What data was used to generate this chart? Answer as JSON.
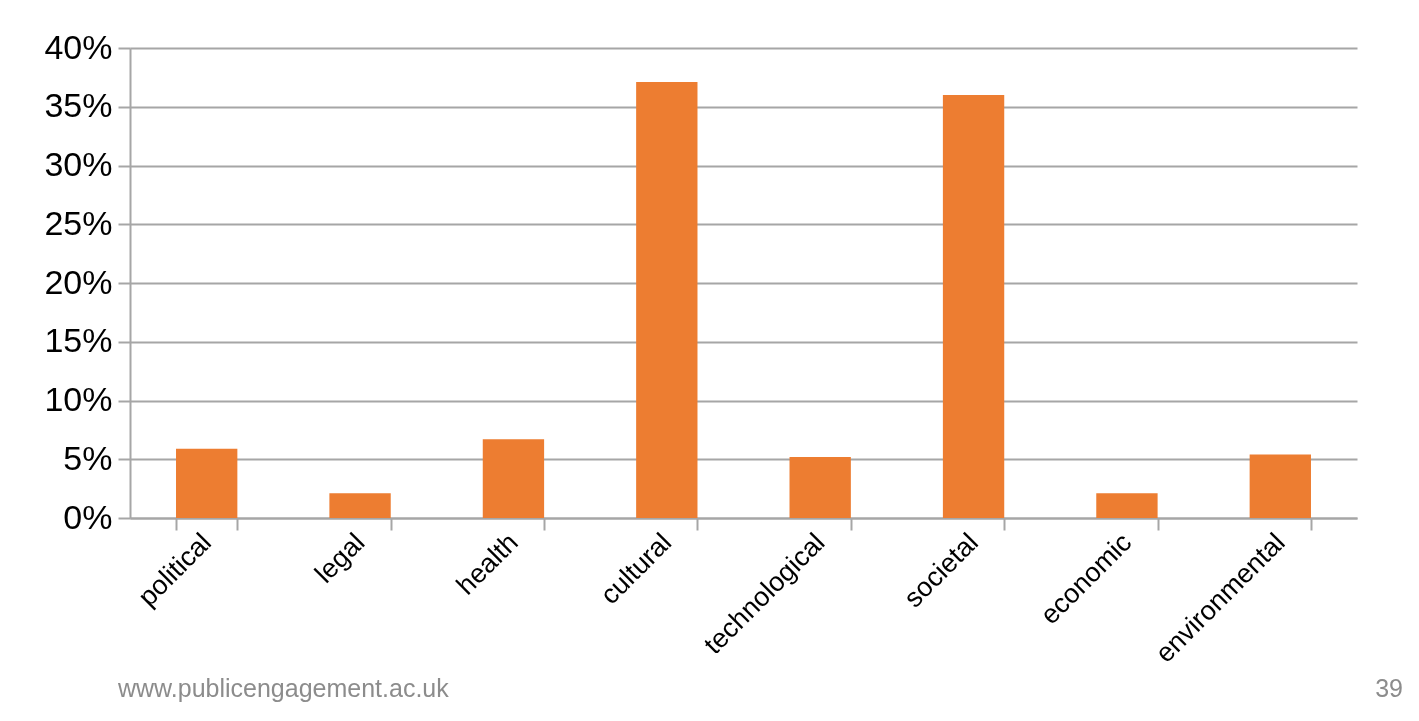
{
  "chart_data": {
    "type": "bar",
    "categories": [
      "political",
      "legal",
      "health",
      "cultural",
      "technological",
      "societal",
      "economic",
      "environmental"
    ],
    "values": [
      5.9,
      2.1,
      6.7,
      37.1,
      5.2,
      36.0,
      2.1,
      5.4
    ],
    "color": "#ed7d31",
    "ylim": [
      0,
      40
    ],
    "yticks": [
      {
        "value": 0,
        "label": "0%"
      },
      {
        "value": 5,
        "label": "5%"
      },
      {
        "value": 10,
        "label": "10%"
      },
      {
        "value": 15,
        "label": "15%"
      },
      {
        "value": 20,
        "label": "20%"
      },
      {
        "value": 25,
        "label": "25%"
      },
      {
        "value": 30,
        "label": "30%"
      },
      {
        "value": 35,
        "label": "35%"
      },
      {
        "value": 40,
        "label": "40%"
      }
    ],
    "grid": "y",
    "annotations": [
      "www.publicengagement.ac.uk",
      "39"
    ]
  }
}
